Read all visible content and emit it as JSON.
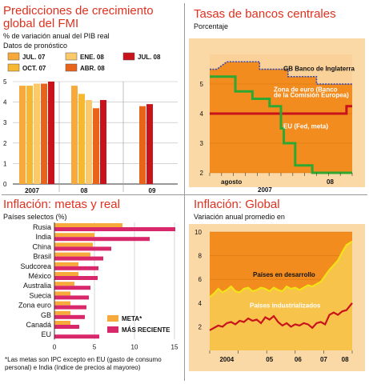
{
  "chart_data": [
    {
      "type": "bar",
      "title": "Predicciones de crecimiento global del FMI",
      "subtitle": "% de variación anual del PIB real",
      "subtitle2": "Datos de pronóstico",
      "groups": [
        "2007",
        "08",
        "09"
      ],
      "series": [
        {
          "name": "JUL. 07",
          "color": "#f7a93c",
          "values": [
            4.8,
            4.8,
            null
          ]
        },
        {
          "name": "OCT. 07",
          "color": "#f5b830",
          "values": [
            4.8,
            4.4,
            null
          ]
        },
        {
          "name": "ENE. 08",
          "color": "#f9c96a",
          "values": [
            4.9,
            4.1,
            null
          ]
        },
        {
          "name": "ABR. 08",
          "color": "#e8641b",
          "values": [
            4.9,
            3.7,
            3.8
          ]
        },
        {
          "name": "JUL. 08",
          "color": "#c8121c",
          "values": [
            5.0,
            4.1,
            3.9
          ]
        }
      ],
      "ylim": [
        0,
        5
      ],
      "yticks": [
        0,
        1,
        2,
        3,
        4,
        5
      ]
    },
    {
      "type": "line",
      "title": "Tasas de bancos centrales",
      "subtitle": "Porcentaje",
      "ylim": [
        2,
        6
      ],
      "yticks": [
        2,
        3,
        4,
        5
      ],
      "xlabels": [
        "agosto",
        "2007",
        "08"
      ],
      "series": [
        {
          "name": "GB Banco de Inglaterra",
          "color": "#3a4bb0",
          "dashed": true,
          "x": [
            0,
            0.05,
            0.12,
            0.12,
            0.35,
            0.35,
            0.55,
            0.55,
            0.75,
            0.75,
            1
          ],
          "y": [
            5.5,
            5.5,
            5.75,
            5.75,
            5.75,
            5.5,
            5.5,
            5.25,
            5.25,
            5.0,
            5.0
          ]
        },
        {
          "name": "Zona de euro (Banco de la Comisión Europea)",
          "color": "#c8121c",
          "x": [
            0,
            0.96,
            0.96,
            1
          ],
          "y": [
            4.0,
            4.0,
            4.25,
            4.25
          ]
        },
        {
          "name": "EU (Fed, meta)",
          "color": "#2fa832",
          "x": [
            0,
            0.18,
            0.18,
            0.3,
            0.3,
            0.42,
            0.42,
            0.5,
            0.5,
            0.52,
            0.52,
            0.6,
            0.6,
            0.63,
            0.63,
            0.72,
            0.72,
            0.82,
            0.82,
            1
          ],
          "y": [
            5.25,
            5.25,
            4.75,
            4.75,
            4.5,
            4.5,
            4.25,
            4.25,
            3.5,
            3.5,
            3.0,
            3.0,
            2.25,
            2.25,
            2.25,
            2.25,
            2.0,
            2.0,
            2.0,
            2.0
          ]
        }
      ],
      "labels": {
        "gb": "GB Banco de Inglaterra",
        "euro1": "Zona de euro (Banco",
        "euro2": "de la Comisión Europea)",
        "eu": "EU (Fed, meta)"
      }
    },
    {
      "type": "bar",
      "orientation": "horizontal",
      "title": "Inflación: metas y real",
      "subtitle": "Países selectos (%)",
      "categories": [
        "Rusia",
        "India",
        "China",
        "Brasil",
        "Sudcorea",
        "México",
        "Australia",
        "Suecia",
        "Zona euro",
        "GB",
        "Canadá",
        "EU"
      ],
      "series": [
        {
          "name": "META*",
          "color": "#f7a93c",
          "values": [
            8.5,
            5.0,
            4.8,
            4.5,
            3.0,
            3.0,
            2.5,
            2.0,
            2.0,
            2.0,
            2.0,
            0
          ]
        },
        {
          "name": "MÁS RECIENTE",
          "color": "#d8286b",
          "values": [
            15.1,
            11.9,
            7.1,
            6.1,
            5.5,
            5.4,
            4.5,
            4.3,
            4.0,
            3.8,
            3.1,
            5.6
          ]
        }
      ],
      "xlim": [
        0,
        15
      ],
      "xticks": [
        0,
        5,
        10,
        15
      ],
      "footnote": "*Las metas son IPC excepto en EU (gasto de consumo personal) e India (índice de precios al mayoreo)"
    },
    {
      "type": "line",
      "title": "Inflación: Global",
      "subtitle": "Variación anual promedio en",
      "ylim": [
        0,
        10
      ],
      "yticks": [
        2,
        4,
        6,
        8,
        10
      ],
      "xlabels": [
        "2004",
        "05",
        "06",
        "07",
        "08"
      ],
      "series": [
        {
          "name": "Países en desarrollo",
          "color": "#f2e317",
          "x": [
            0,
            0.03,
            0.06,
            0.09,
            0.12,
            0.15,
            0.18,
            0.21,
            0.24,
            0.27,
            0.3,
            0.33,
            0.36,
            0.39,
            0.42,
            0.45,
            0.48,
            0.51,
            0.54,
            0.57,
            0.6,
            0.63,
            0.66,
            0.69,
            0.72,
            0.75,
            0.78,
            0.81,
            0.84,
            0.87,
            0.9,
            0.93,
            0.96,
            1
          ],
          "y": [
            4.5,
            4.8,
            5.2,
            4.9,
            5.1,
            5.4,
            5.0,
            4.9,
            5.2,
            5.3,
            5.0,
            5.1,
            5.3,
            5.2,
            5.0,
            5.3,
            5.1,
            5.0,
            5.4,
            5.2,
            5.3,
            5.1,
            5.3,
            5.5,
            5.4,
            5.6,
            5.8,
            6.3,
            6.8,
            7.2,
            7.6,
            8.3,
            8.9,
            9.2
          ]
        },
        {
          "name": "Países industrializados",
          "color": "#c8121c",
          "x": [
            0,
            0.03,
            0.06,
            0.09,
            0.12,
            0.15,
            0.18,
            0.21,
            0.24,
            0.27,
            0.3,
            0.33,
            0.36,
            0.39,
            0.42,
            0.45,
            0.48,
            0.51,
            0.54,
            0.57,
            0.6,
            0.63,
            0.66,
            0.69,
            0.72,
            0.75,
            0.78,
            0.81,
            0.84,
            0.87,
            0.9,
            0.93,
            0.96,
            1
          ],
          "y": [
            1.7,
            1.9,
            2.1,
            2.0,
            2.3,
            2.4,
            2.2,
            2.5,
            2.4,
            2.7,
            2.5,
            2.6,
            2.3,
            2.8,
            2.6,
            2.9,
            2.4,
            2.1,
            2.3,
            2.0,
            2.2,
            2.1,
            2.3,
            2.2,
            1.9,
            2.3,
            2.4,
            2.2,
            3.0,
            3.2,
            3.0,
            3.3,
            3.4,
            4.0
          ]
        }
      ]
    }
  ],
  "colors": {
    "accent": "#e0301e",
    "orange_bg": "#f28c1e",
    "light_bg": "#fbd9a6"
  }
}
